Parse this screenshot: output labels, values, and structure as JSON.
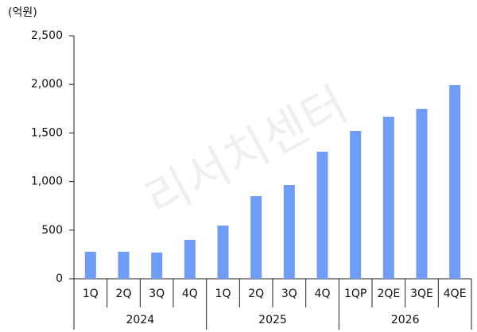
{
  "chart_data": {
    "type": "bar",
    "unit_label": "(억원)",
    "watermark": "리서치센터",
    "categories": [
      "1Q",
      "2Q",
      "3Q",
      "4Q",
      "1Q",
      "2Q",
      "3Q",
      "4Q",
      "1QP",
      "2QE",
      "3QE",
      "4QE"
    ],
    "groups": [
      "2024",
      "2025",
      "2026"
    ],
    "values": [
      278,
      278,
      270,
      400,
      547,
      850,
      964,
      1307,
      1520,
      1667,
      1748,
      1993
    ],
    "color": "#6f9cf7",
    "ylim": [
      0,
      2500
    ],
    "yticks": [
      0,
      500,
      {
        "value": 1000,
        "label": "1,000"
      },
      {
        "value": 1500,
        "label": "1,500"
      },
      {
        "value": 2000,
        "label": "2,000"
      },
      {
        "value": 2500,
        "label": "2,500"
      }
    ],
    "grid": false
  }
}
